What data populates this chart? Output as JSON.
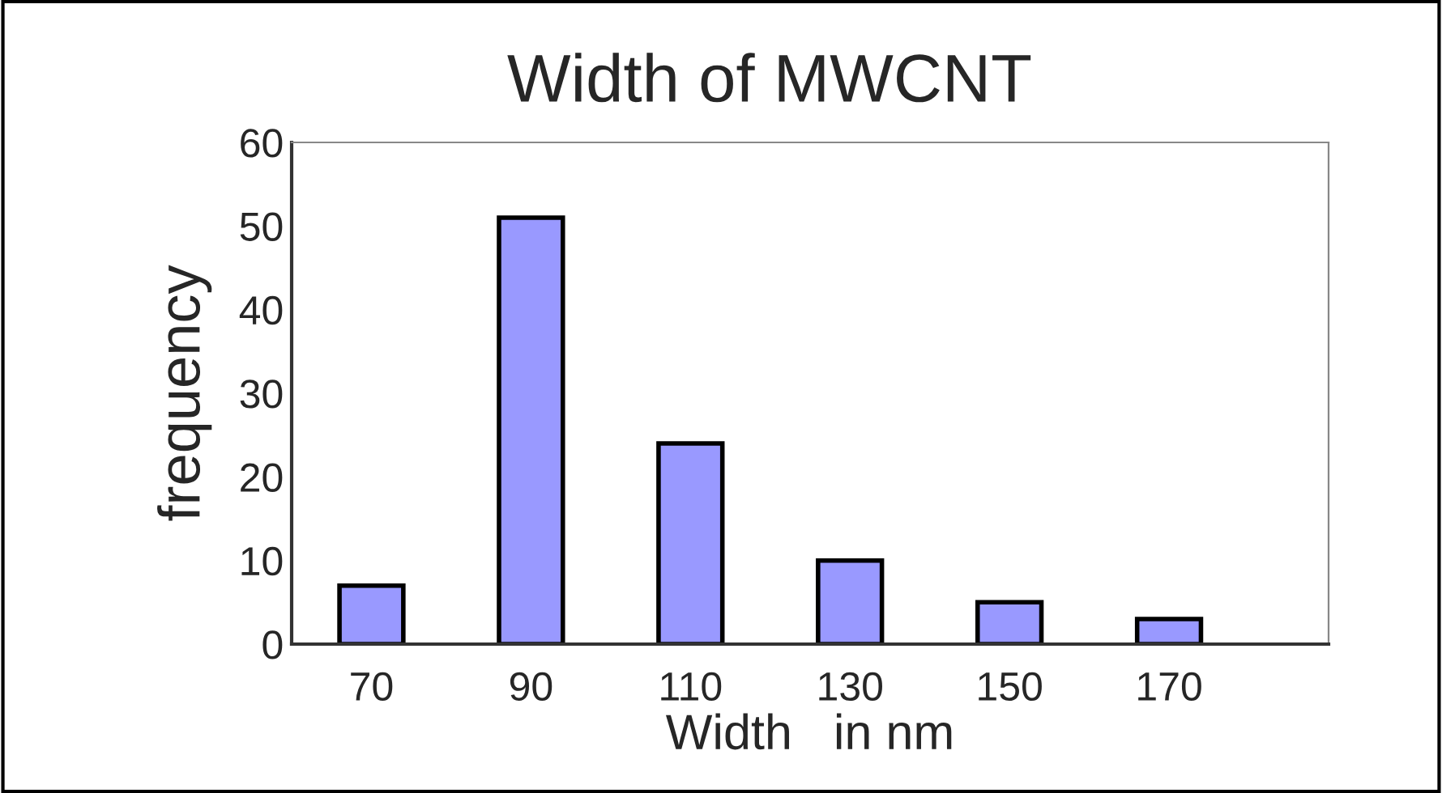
{
  "chart_data": {
    "type": "bar",
    "title": "Width of MWCNT",
    "xlabel": "Width   in nm",
    "ylabel": "frequency",
    "categories": [
      "70",
      "90",
      "110",
      "130",
      "150",
      "170"
    ],
    "values": [
      7,
      51,
      24,
      10,
      5,
      3
    ],
    "color": "#9999ff",
    "ylim": [
      0,
      60
    ],
    "yticks": [
      0,
      10,
      20,
      30,
      40,
      50,
      60
    ],
    "grid": false,
    "legend": false
  }
}
